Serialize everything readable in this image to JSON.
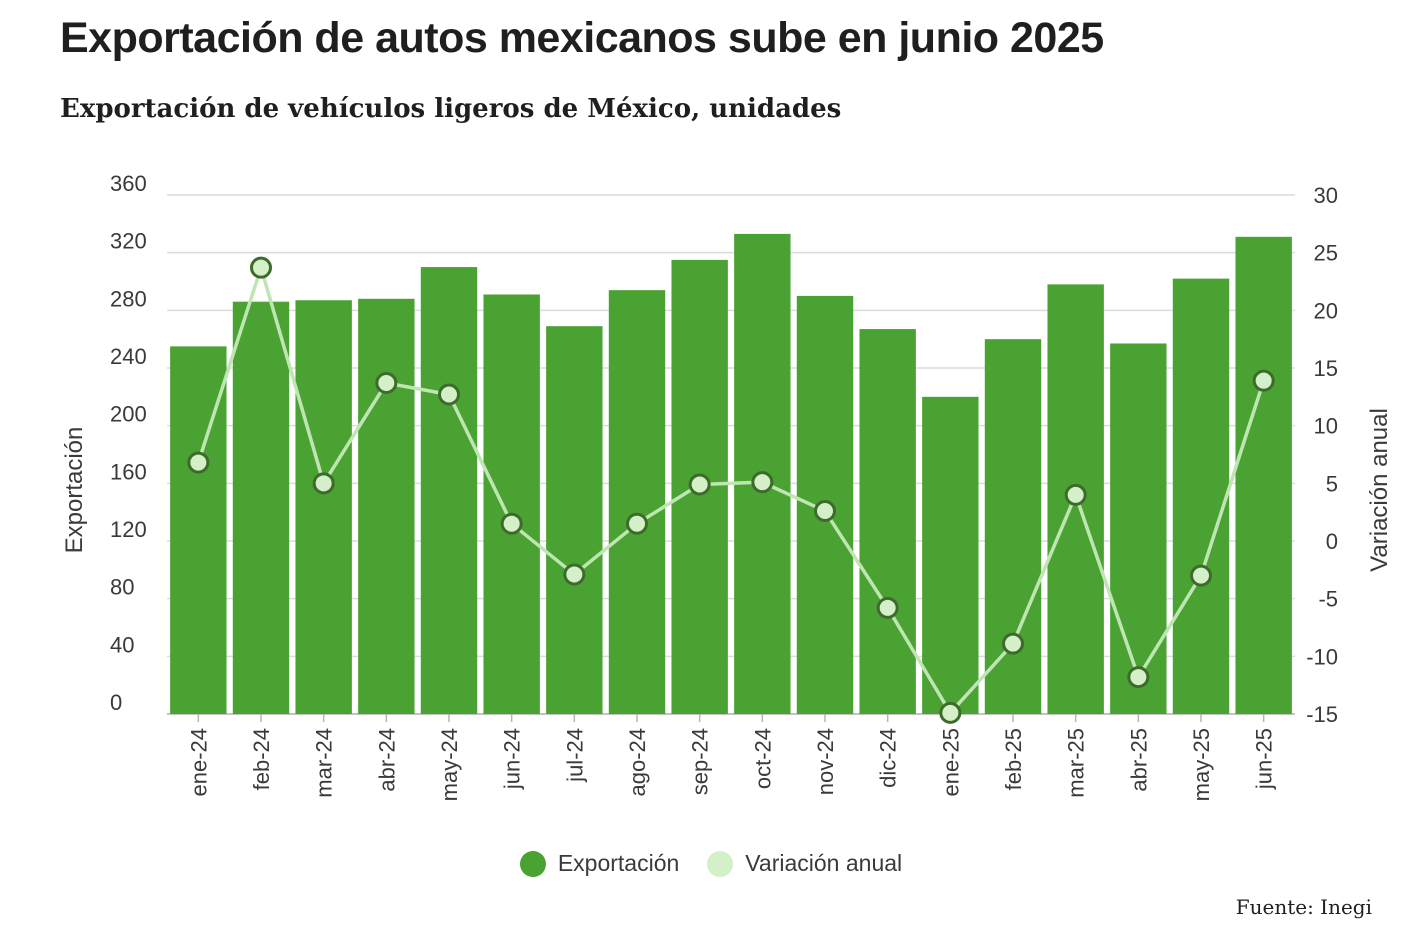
{
  "title": "Exportación de autos mexicanos sube en junio 2025",
  "subtitle": "Exportación de vehículos ligeros de México, unidades",
  "source": "Fuente: Inegi",
  "colors": {
    "bar": "#4aa232",
    "line": "#d3f0c8",
    "line_stroke": "#bfe6b2",
    "marker_edge": "#3e6b2c",
    "grid": "#dcdcdc"
  },
  "chart_data": {
    "type": "bar",
    "categories": [
      "ene-24",
      "feb-24",
      "mar-24",
      "abr-24",
      "may-24",
      "jun-24",
      "jul-24",
      "ago-24",
      "sep-24",
      "oct-24",
      "nov-24",
      "dic-24",
      "ene-25",
      "feb-25",
      "mar-25",
      "abr-25",
      "may-25",
      "jun-25"
    ],
    "series": [
      {
        "name": "Exportación",
        "type": "bar",
        "axis": "left",
        "values": [
          255,
          286,
          287,
          288,
          310,
          291,
          269,
          294,
          315,
          333,
          290,
          267,
          220,
          260,
          298,
          257,
          302,
          331
        ]
      },
      {
        "name": "Variación anual",
        "type": "line",
        "axis": "right",
        "values": [
          6.8,
          23.7,
          5.0,
          13.7,
          12.7,
          1.5,
          -2.9,
          1.5,
          4.9,
          5.1,
          2.6,
          -5.8,
          -14.9,
          -8.9,
          4.0,
          -11.8,
          -3.0,
          13.9
        ]
      }
    ],
    "ylabel": "Exportación",
    "y2label": "Variación anual",
    "ylim": [
      0,
      360
    ],
    "y2lim": [
      -15,
      30
    ],
    "yticks": [
      "0",
      "40",
      "80",
      "120",
      "160",
      "200",
      "240",
      "280",
      "320",
      "360"
    ],
    "y2ticks": [
      "-15",
      "-10",
      "-5",
      "0",
      "5",
      "10",
      "15",
      "20",
      "25",
      "30"
    ],
    "legend": [
      "Exportación",
      "Variación anual"
    ],
    "legend_position": "bottom-center",
    "grid": true
  }
}
